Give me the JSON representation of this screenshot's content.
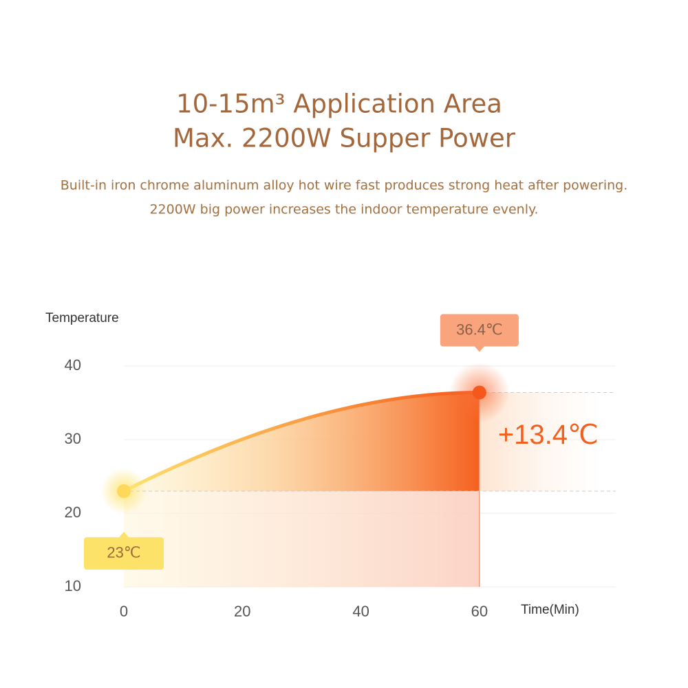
{
  "header": {
    "title_line1": "10-15m³ Application Area",
    "title_line2": "Max. 2200W Supper Power",
    "description_line1": "Built-in iron chrome aluminum alloy hot wire fast produces strong heat after powering.",
    "description_line2": "2200W big power increases the indoor temperature evenly."
  },
  "chart_data": {
    "type": "line",
    "y_label": "Temperature",
    "x_label": "Time(Min)",
    "x": [
      0,
      60
    ],
    "values": [
      23,
      36.4
    ],
    "value_labels": [
      "23℃",
      "36.4℃"
    ],
    "annotation": "+13.4℃",
    "xlim": [
      0,
      83
    ],
    "xticks": [
      0,
      20,
      40,
      60
    ],
    "ylim": [
      10,
      40
    ],
    "yticks": [
      10,
      20,
      30,
      40
    ],
    "grid": true
  }
}
